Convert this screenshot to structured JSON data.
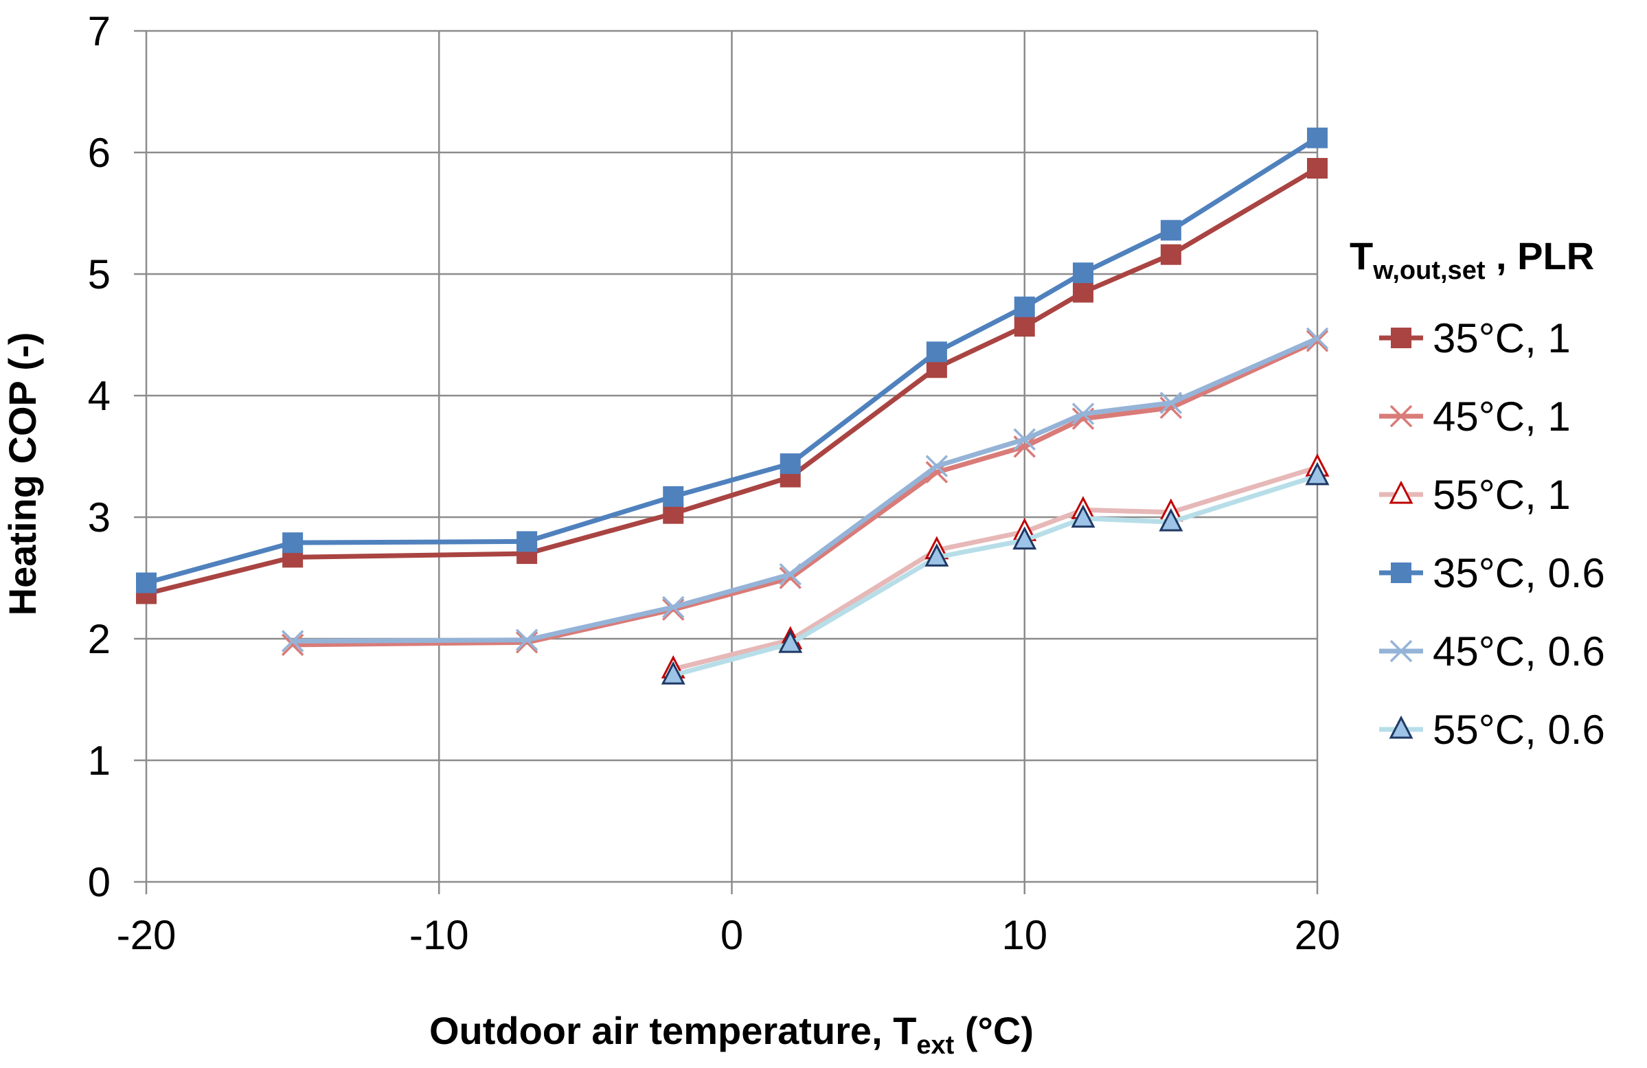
{
  "chart_data": {
    "type": "line",
    "title": "",
    "xlabel": "Outdoor air temperature, T",
    "xlabel_sub": "ext",
    "xlabel_tail": " (°C)",
    "ylabel": "Heating COP (-)",
    "xlim": [
      -20,
      20
    ],
    "ylim": [
      0,
      7
    ],
    "xticks": [
      -20,
      -10,
      0,
      10,
      20
    ],
    "yticks": [
      0,
      1,
      2,
      3,
      4,
      5,
      6,
      7
    ],
    "grid": true,
    "legend": {
      "title_main": "T",
      "title_sub": "w,out,set",
      "title_tail": " , PLR",
      "placement": "right"
    },
    "series": [
      {
        "name": "35°C, 1",
        "color": "#A94442",
        "marker": "square",
        "x": [
          -20,
          -15,
          -7,
          -2,
          2,
          7,
          10,
          12,
          15,
          20
        ],
        "y": [
          2.37,
          2.67,
          2.7,
          3.03,
          3.33,
          4.23,
          4.57,
          4.85,
          5.16,
          5.87
        ]
      },
      {
        "name": "45°C, 1",
        "color": "#D97B78",
        "marker": "x",
        "x": [
          -15,
          -7,
          -2,
          2,
          7,
          10,
          12,
          15,
          20
        ],
        "y": [
          1.95,
          1.97,
          2.24,
          2.5,
          3.37,
          3.58,
          3.81,
          3.9,
          4.45
        ]
      },
      {
        "name": "55°C, 1",
        "color": "#E6B8B7",
        "marker": "triangle",
        "marker_edge": "#C00000",
        "marker_fill": "#FFFFFF",
        "x": [
          -2,
          2,
          7,
          10,
          12,
          15,
          20
        ],
        "y": [
          1.75,
          1.99,
          2.73,
          2.88,
          3.06,
          3.04,
          3.41
        ]
      },
      {
        "name": "35°C, 0.6",
        "color": "#4F81BD",
        "marker": "square",
        "x": [
          -20,
          -15,
          -7,
          -2,
          2,
          7,
          10,
          12,
          15,
          20
        ],
        "y": [
          2.46,
          2.79,
          2.8,
          3.17,
          3.44,
          4.36,
          4.73,
          5.01,
          5.36,
          6.12
        ]
      },
      {
        "name": "45°C, 0.6",
        "color": "#95B3D7",
        "marker": "x",
        "x": [
          -15,
          -7,
          -2,
          2,
          7,
          10,
          12,
          15,
          20
        ],
        "y": [
          1.98,
          1.99,
          2.26,
          2.53,
          3.42,
          3.64,
          3.85,
          3.94,
          4.47
        ]
      },
      {
        "name": "55°C, 0.6",
        "color": "#B7DEE8",
        "marker": "triangle",
        "marker_edge": "#1F3864",
        "marker_fill": "#9DC3E6",
        "x": [
          -2,
          2,
          7,
          10,
          12,
          15,
          20
        ],
        "y": [
          1.7,
          1.96,
          2.67,
          2.81,
          2.99,
          2.96,
          3.34
        ]
      }
    ]
  }
}
